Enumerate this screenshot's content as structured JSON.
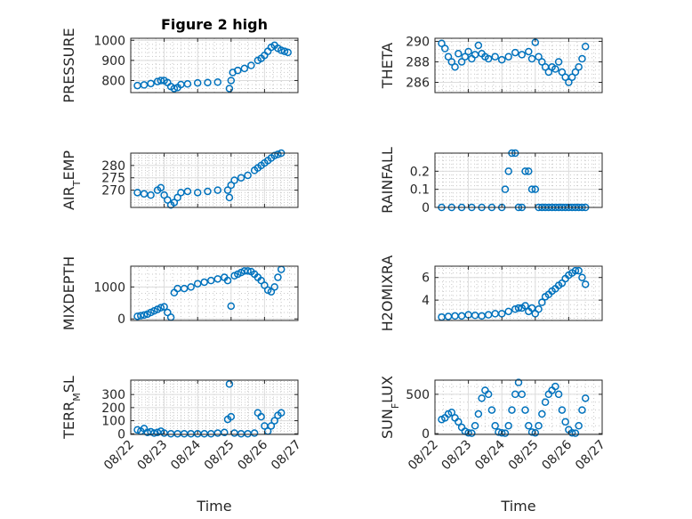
{
  "figure": {
    "title": "Figure 2 high"
  },
  "colors": {
    "marker": "#0072BD",
    "axis": "#262626",
    "grid": "#dcdcdc",
    "background": "#ffffff"
  },
  "x_tick_labels": [
    "08/22",
    "08/23",
    "08/24",
    "08/25",
    "08/26",
    "08/27"
  ],
  "xlabel": "Time",
  "chart_data": [
    {
      "type": "scatter",
      "ylabel": "PRESSURE",
      "ylim": [
        740,
        1010
      ],
      "yticks": [
        800,
        900,
        1000
      ],
      "xlim": [
        0,
        5
      ],
      "grid": true,
      "marker": "circle",
      "series": [
        {
          "x": [
            0.2,
            0.4,
            0.6,
            0.8,
            0.9,
            1.0,
            1.1,
            1.2,
            1.3,
            1.4,
            1.5,
            1.7,
            2.0,
            2.3,
            2.6,
            2.95,
            3.0,
            3.05,
            3.2,
            3.4,
            3.6,
            3.8,
            3.9,
            4.0,
            4.1,
            4.2,
            4.3,
            4.4,
            4.5,
            4.6,
            4.7
          ],
          "y": [
            775,
            778,
            785,
            795,
            800,
            800,
            790,
            770,
            760,
            765,
            780,
            783,
            788,
            790,
            792,
            760,
            800,
            840,
            850,
            860,
            875,
            900,
            910,
            925,
            945,
            965,
            975,
            960,
            950,
            945,
            940
          ]
        }
      ]
    },
    {
      "type": "scatter",
      "ylabel": "THETA",
      "ylim": [
        285,
        290.3
      ],
      "yticks": [
        286,
        288,
        290
      ],
      "xlim": [
        0,
        5
      ],
      "grid": true,
      "marker": "circle",
      "series": [
        {
          "x": [
            0.2,
            0.3,
            0.4,
            0.5,
            0.6,
            0.7,
            0.8,
            0.9,
            1.0,
            1.1,
            1.2,
            1.3,
            1.4,
            1.5,
            1.6,
            1.8,
            2.0,
            2.2,
            2.4,
            2.6,
            2.8,
            2.9,
            3.0,
            3.1,
            3.2,
            3.3,
            3.4,
            3.5,
            3.6,
            3.7,
            3.8,
            3.9,
            4.0,
            4.1,
            4.2,
            4.3,
            4.4,
            4.5
          ],
          "y": [
            289.8,
            289.3,
            288.5,
            288.0,
            287.5,
            288.8,
            288.0,
            288.5,
            289.0,
            288.3,
            288.7,
            289.6,
            288.8,
            288.5,
            288.3,
            288.5,
            288.2,
            288.5,
            288.9,
            288.7,
            289.0,
            288.3,
            289.9,
            288.5,
            288.0,
            287.5,
            287.0,
            287.5,
            287.3,
            288.0,
            287.0,
            286.5,
            286.0,
            286.5,
            287.0,
            287.5,
            288.3,
            289.5
          ]
        }
      ]
    },
    {
      "type": "scatter",
      "ylabel": "AIR_TEMP",
      "ylim": [
        263,
        285
      ],
      "yticks": [
        270,
        275,
        280
      ],
      "xlim": [
        0,
        5
      ],
      "grid": true,
      "marker": "circle",
      "series": [
        {
          "x": [
            0.2,
            0.4,
            0.6,
            0.8,
            0.9,
            1.0,
            1.1,
            1.2,
            1.3,
            1.4,
            1.5,
            1.7,
            2.0,
            2.3,
            2.6,
            2.9,
            2.95,
            3.0,
            3.1,
            3.3,
            3.5,
            3.7,
            3.8,
            3.9,
            4.0,
            4.1,
            4.2,
            4.3,
            4.4,
            4.5
          ],
          "y": [
            269,
            268.5,
            268,
            270,
            271,
            268,
            266,
            264,
            265,
            267,
            269,
            269.5,
            269,
            269.5,
            270,
            270,
            267,
            272,
            274,
            275,
            276,
            278,
            279,
            280,
            281,
            282,
            283,
            284,
            284.5,
            285
          ]
        }
      ]
    },
    {
      "type": "scatter",
      "ylabel": "RAINFALL",
      "ylim": [
        0,
        0.3
      ],
      "yticks": [
        0,
        0.1,
        0.2
      ],
      "xlim": [
        0,
        5
      ],
      "grid": true,
      "marker": "circle",
      "series": [
        {
          "x": [
            0.2,
            0.5,
            0.8,
            1.1,
            1.4,
            1.7,
            2.0,
            2.1,
            2.2,
            2.3,
            2.4,
            2.5,
            2.6,
            2.7,
            2.8,
            2.9,
            3.0,
            3.1,
            3.2,
            3.3,
            3.4,
            3.5,
            3.6,
            3.7,
            3.8,
            3.9,
            4.0,
            4.1,
            4.2,
            4.3,
            4.4,
            4.5
          ],
          "y": [
            0,
            0,
            0,
            0,
            0,
            0,
            0,
            0.1,
            0.2,
            0.3,
            0.3,
            0,
            0,
            0.2,
            0.2,
            0.1,
            0.1,
            0,
            0,
            0,
            0,
            0,
            0,
            0,
            0,
            0,
            0,
            0,
            0,
            0,
            0,
            0
          ]
        }
      ]
    },
    {
      "type": "scatter",
      "ylabel": "MIXDEPTH",
      "ylim": [
        -50,
        1650
      ],
      "yticks": [
        0,
        1000
      ],
      "xlim": [
        0,
        5
      ],
      "grid": true,
      "marker": "circle",
      "series": [
        {
          "x": [
            0.2,
            0.3,
            0.4,
            0.5,
            0.6,
            0.7,
            0.8,
            0.9,
            1.0,
            1.1,
            1.2,
            1.3,
            1.4,
            1.6,
            1.8,
            2.0,
            2.2,
            2.4,
            2.6,
            2.8,
            2.9,
            3.0,
            3.1,
            3.2,
            3.3,
            3.4,
            3.5,
            3.6,
            3.7,
            3.8,
            3.9,
            4.0,
            4.1,
            4.2,
            4.3,
            4.4,
            4.5
          ],
          "y": [
            80,
            100,
            120,
            150,
            200,
            250,
            300,
            350,
            380,
            200,
            50,
            820,
            950,
            950,
            1000,
            1100,
            1150,
            1200,
            1250,
            1300,
            1200,
            400,
            1350,
            1400,
            1450,
            1500,
            1500,
            1480,
            1400,
            1300,
            1200,
            1050,
            900,
            850,
            1000,
            1300,
            1550
          ]
        }
      ]
    },
    {
      "type": "scatter",
      "ylabel": "H2OMIXRA",
      "ylim": [
        2.2,
        7
      ],
      "yticks": [
        4,
        6
      ],
      "xlim": [
        0,
        5
      ],
      "grid": true,
      "marker": "circle",
      "series": [
        {
          "x": [
            0.2,
            0.4,
            0.6,
            0.8,
            1.0,
            1.2,
            1.4,
            1.6,
            1.8,
            2.0,
            2.2,
            2.4,
            2.5,
            2.6,
            2.7,
            2.8,
            2.9,
            3.0,
            3.1,
            3.2,
            3.3,
            3.4,
            3.5,
            3.6,
            3.7,
            3.8,
            3.9,
            4.0,
            4.1,
            4.2,
            4.3,
            4.4,
            4.5
          ],
          "y": [
            2.5,
            2.55,
            2.6,
            2.6,
            2.7,
            2.65,
            2.6,
            2.7,
            2.8,
            2.8,
            3.0,
            3.2,
            3.3,
            3.3,
            3.5,
            3.0,
            3.3,
            2.8,
            3.2,
            3.8,
            4.3,
            4.5,
            4.8,
            5.0,
            5.3,
            5.5,
            5.9,
            6.2,
            6.4,
            6.6,
            6.6,
            6.0,
            5.4
          ]
        }
      ]
    },
    {
      "type": "scatter",
      "ylabel": "TERR_MSL",
      "ylim": [
        -5,
        410
      ],
      "yticks": [
        0,
        100,
        200,
        300
      ],
      "xlim": [
        0,
        5
      ],
      "grid": true,
      "marker": "circle",
      "series": [
        {
          "x": [
            0.2,
            0.3,
            0.4,
            0.5,
            0.6,
            0.7,
            0.8,
            0.9,
            1.0,
            1.2,
            1.4,
            1.6,
            1.8,
            2.0,
            2.2,
            2.4,
            2.6,
            2.8,
            2.9,
            2.95,
            3.0,
            3.1,
            3.3,
            3.5,
            3.7,
            3.8,
            3.9,
            4.0,
            4.1,
            4.2,
            4.3,
            4.4,
            4.5
          ],
          "y": [
            30,
            20,
            40,
            10,
            15,
            5,
            10,
            20,
            5,
            0,
            0,
            0,
            0,
            0,
            0,
            0,
            5,
            10,
            110,
            380,
            130,
            5,
            0,
            0,
            5,
            160,
            130,
            60,
            20,
            60,
            100,
            140,
            160
          ]
        }
      ]
    },
    {
      "type": "scatter",
      "ylabel": "SUN_FLUX",
      "ylim": [
        -10,
        680
      ],
      "yticks": [
        0,
        500
      ],
      "xlim": [
        0,
        5
      ],
      "grid": true,
      "marker": "circle",
      "series": [
        {
          "x": [
            0.2,
            0.3,
            0.4,
            0.5,
            0.6,
            0.7,
            0.8,
            0.9,
            1.0,
            1.1,
            1.2,
            1.3,
            1.4,
            1.5,
            1.6,
            1.7,
            1.8,
            1.9,
            2.0,
            2.1,
            2.2,
            2.3,
            2.4,
            2.5,
            2.6,
            2.7,
            2.8,
            2.9,
            3.0,
            3.1,
            3.2,
            3.3,
            3.4,
            3.5,
            3.6,
            3.7,
            3.8,
            3.9,
            4.0,
            4.1,
            4.2,
            4.3,
            4.4,
            4.5
          ],
          "y": [
            180,
            200,
            250,
            270,
            200,
            150,
            80,
            30,
            10,
            5,
            100,
            250,
            450,
            550,
            500,
            300,
            100,
            20,
            10,
            5,
            100,
            300,
            500,
            650,
            500,
            300,
            100,
            20,
            10,
            100,
            250,
            400,
            500,
            550,
            600,
            500,
            300,
            150,
            50,
            10,
            5,
            100,
            300,
            450
          ]
        }
      ]
    }
  ]
}
